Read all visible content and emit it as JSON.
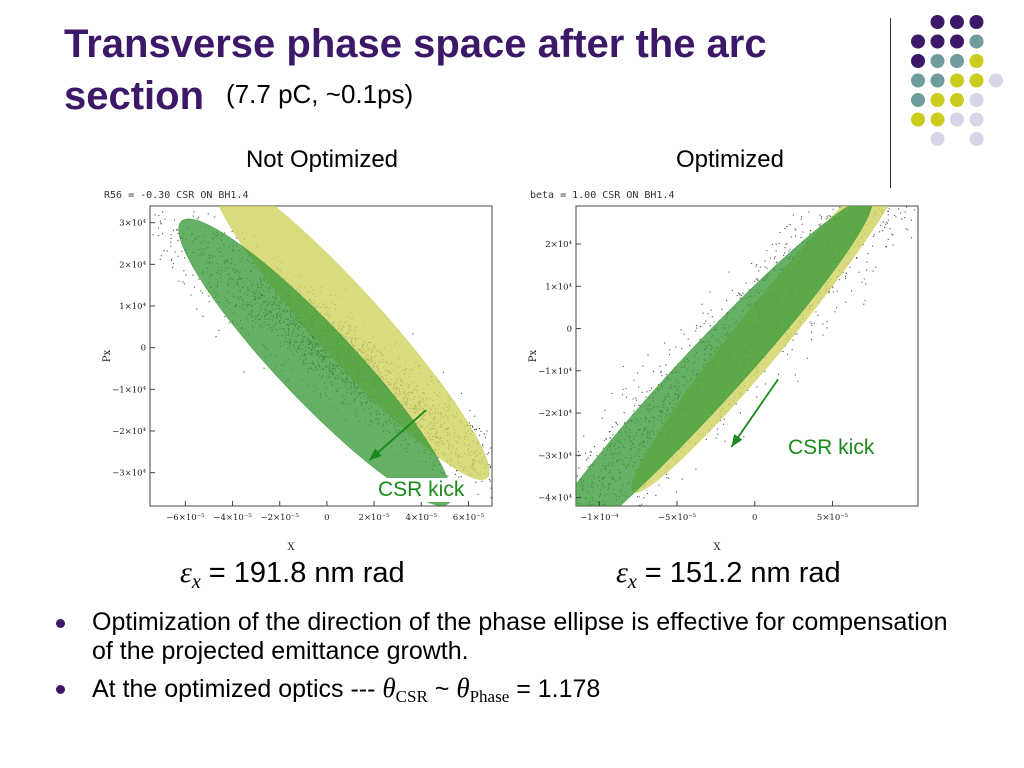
{
  "slide": {
    "title_line1": "Transverse phase space after the arc",
    "title_line2": "section",
    "subtitle": "(7.7 pC, ~0.1ps)",
    "colors": {
      "title": "#3d1768",
      "dot_purple": "#3d1768",
      "dot_teal": "#6e9c9c",
      "dot_yellow": "#cccc1f",
      "dot_lavender": "#d6d6e8",
      "ellipse_yellow": "#cfd15a",
      "ellipse_green": "#3a9a3a",
      "arrow_green": "#1a8a1a"
    },
    "left_panel_label": "Not Optimized",
    "right_panel_label": "Optimized",
    "left_emittance": {
      "symbol": "ε",
      "sub": "x",
      "text": "= 191.8 nm rad"
    },
    "right_emittance": {
      "symbol": "ε",
      "sub": "x",
      "text": "= 151.2 nm rad"
    },
    "bullets": {
      "b1": "Optimization of the direction of the phase ellipse is effective for compensation of the projected emittance growth.",
      "b2_prefix": "At the optimized optics ---",
      "b2_theta1": "θ",
      "b2_sub1": "CSR",
      "b2_tilde": "~",
      "b2_theta2": "θ",
      "b2_sub2": "Phase",
      "b2_value": "= 1.178"
    }
  },
  "chart_data": [
    {
      "type": "scatter",
      "title": "R56 = -0.30 CSR ON BH1.4",
      "xlabel": "X",
      "ylabel": "Px",
      "xlim": [
        -7.5e-05,
        7e-05
      ],
      "ylim": [
        -38000.0,
        34000.0
      ],
      "xticks": [
        {
          "v": -6e-05,
          "label": "−6×10⁻⁵"
        },
        {
          "v": -4e-05,
          "label": "−4×10⁻⁵"
        },
        {
          "v": -2e-05,
          "label": "−2×10⁻⁵"
        },
        {
          "v": 0,
          "label": "0"
        },
        {
          "v": 2e-05,
          "label": "2×10⁻⁵"
        },
        {
          "v": 4e-05,
          "label": "4×10⁻⁵"
        },
        {
          "v": 6e-05,
          "label": "6×10⁻⁵"
        }
      ],
      "yticks": [
        {
          "v": 30000.0,
          "label": "3×10⁴"
        },
        {
          "v": 20000.0,
          "label": "2×10⁴"
        },
        {
          "v": 10000.0,
          "label": "1×10⁴"
        },
        {
          "v": 0,
          "label": "0"
        },
        {
          "v": -10000.0,
          "label": "−1×10⁴"
        },
        {
          "v": -20000.0,
          "label": "−2×10⁴"
        },
        {
          "v": -30000.0,
          "label": "−3×10⁴"
        }
      ],
      "cloud": {
        "cx": 5e-06,
        "cy": -2000.0,
        "ux": 0.5,
        "uy": -0.44,
        "sa": 33000.0,
        "sb": 6000.0
      },
      "ellipses": [
        {
          "color": "yellow",
          "cx": 1e-05,
          "cy": 5000.0,
          "a": 52000.0,
          "b": 8500.0,
          "ux": 0.55,
          "uy": -0.7
        },
        {
          "color": "green",
          "cx": -5e-06,
          "cy": -3500.0,
          "a": 50000.0,
          "b": 9500.0,
          "ux": 0.56,
          "uy": -0.68
        }
      ],
      "arrow": {
        "x0": 4.2e-05,
        "y0": -15000.0,
        "x1": 1.8e-05,
        "y1": -27000.0
      },
      "annotation": "CSR kick"
    },
    {
      "type": "scatter",
      "title": "beta = 1.00 CSR ON BH1.4",
      "xlabel": "X",
      "ylabel": "Px",
      "xlim": [
        -0.000115,
        0.000105
      ],
      "ylim": [
        -42000.0,
        29000.0
      ],
      "xticks": [
        {
          "v": -0.0001,
          "label": "−1×10⁻⁴"
        },
        {
          "v": -5e-05,
          "label": "−5×10⁻⁵"
        },
        {
          "v": 0,
          "label": "0"
        },
        {
          "v": 5e-05,
          "label": "5×10⁻⁵"
        }
      ],
      "yticks": [
        {
          "v": 20000.0,
          "label": "2×10⁴"
        },
        {
          "v": 10000.0,
          "label": "1×10⁴"
        },
        {
          "v": 0,
          "label": "0"
        },
        {
          "v": -10000.0,
          "label": "−1×10⁴"
        },
        {
          "v": -20000.0,
          "label": "−2×10⁴"
        },
        {
          "v": -30000.0,
          "label": "−3×10⁴"
        },
        {
          "v": -40000.0,
          "label": "−4×10⁴"
        }
      ],
      "cloud": {
        "cx": -1.5e-05,
        "cy": -5000.0,
        "ux": 0.64,
        "uy": 0.77,
        "sa": 42000.0,
        "sb": 4500.0
      },
      "ellipses": [
        {
          "color": "yellow",
          "cx": 1e-05,
          "cy": 1000.0,
          "a": 49000.0,
          "b": 5500.0,
          "ux": 0.58,
          "uy": 0.81
        },
        {
          "color": "green",
          "cx": -3.5e-05,
          "cy": -13000.0,
          "a": 56000.0,
          "b": 6500.0,
          "ux": 0.63,
          "uy": 0.78
        }
      ],
      "arrow": {
        "x0": 1.5e-05,
        "y0": -12000.0,
        "x1": -1.5e-05,
        "y1": -28000.0
      },
      "annotation": "CSR kick"
    }
  ]
}
